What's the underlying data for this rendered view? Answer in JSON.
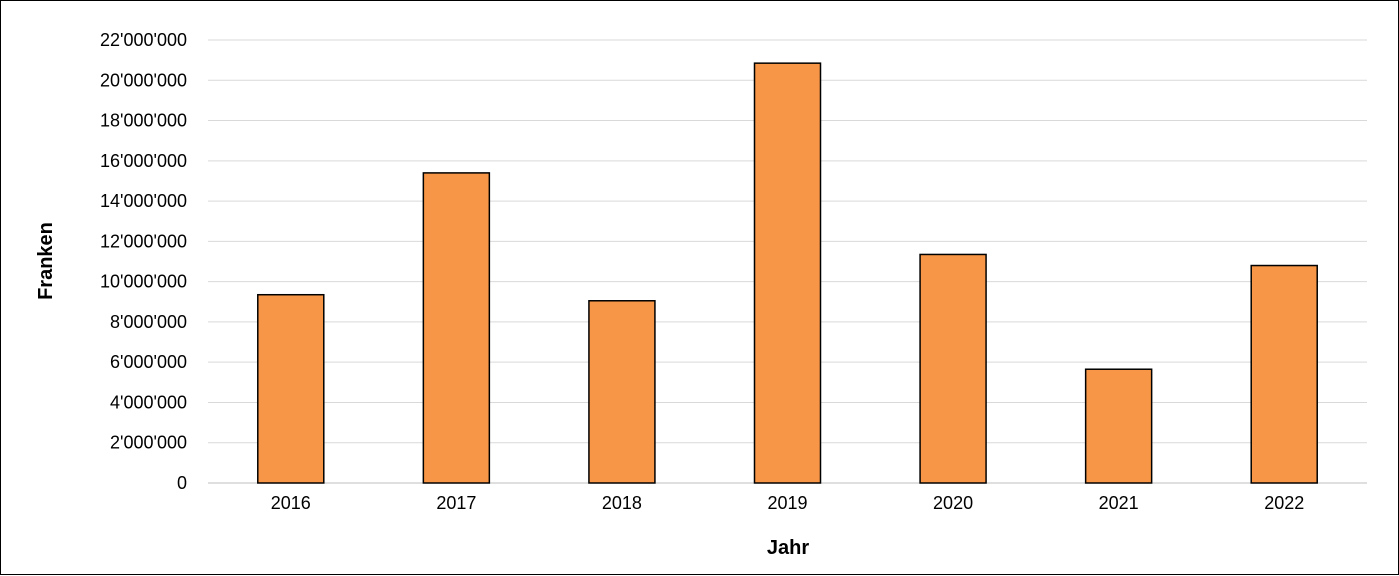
{
  "chart_data": {
    "type": "bar",
    "title": "",
    "xlabel": "Jahr",
    "ylabel": "Franken",
    "categories": [
      "2016",
      "2017",
      "2018",
      "2019",
      "2020",
      "2021",
      "2022"
    ],
    "values": [
      9350000,
      15400000,
      9050000,
      20850000,
      11350000,
      5650000,
      10800000
    ],
    "ylim": [
      0,
      22000000
    ],
    "yticks": [
      0,
      2000000,
      4000000,
      6000000,
      8000000,
      10000000,
      12000000,
      14000000,
      16000000,
      18000000,
      20000000,
      22000000
    ],
    "ytick_labels": [
      "0",
      "2'000'000",
      "4'000'000",
      "6'000'000",
      "8'000'000",
      "10'000'000",
      "12'000'000",
      "14'000'000",
      "16'000'000",
      "18'000'000",
      "20'000'000",
      "22'000'000"
    ],
    "grid": true,
    "legend": "none",
    "colors": {
      "bar": "#f79646",
      "bar_edge": "#000000",
      "grid": "#d9d9d9"
    }
  }
}
